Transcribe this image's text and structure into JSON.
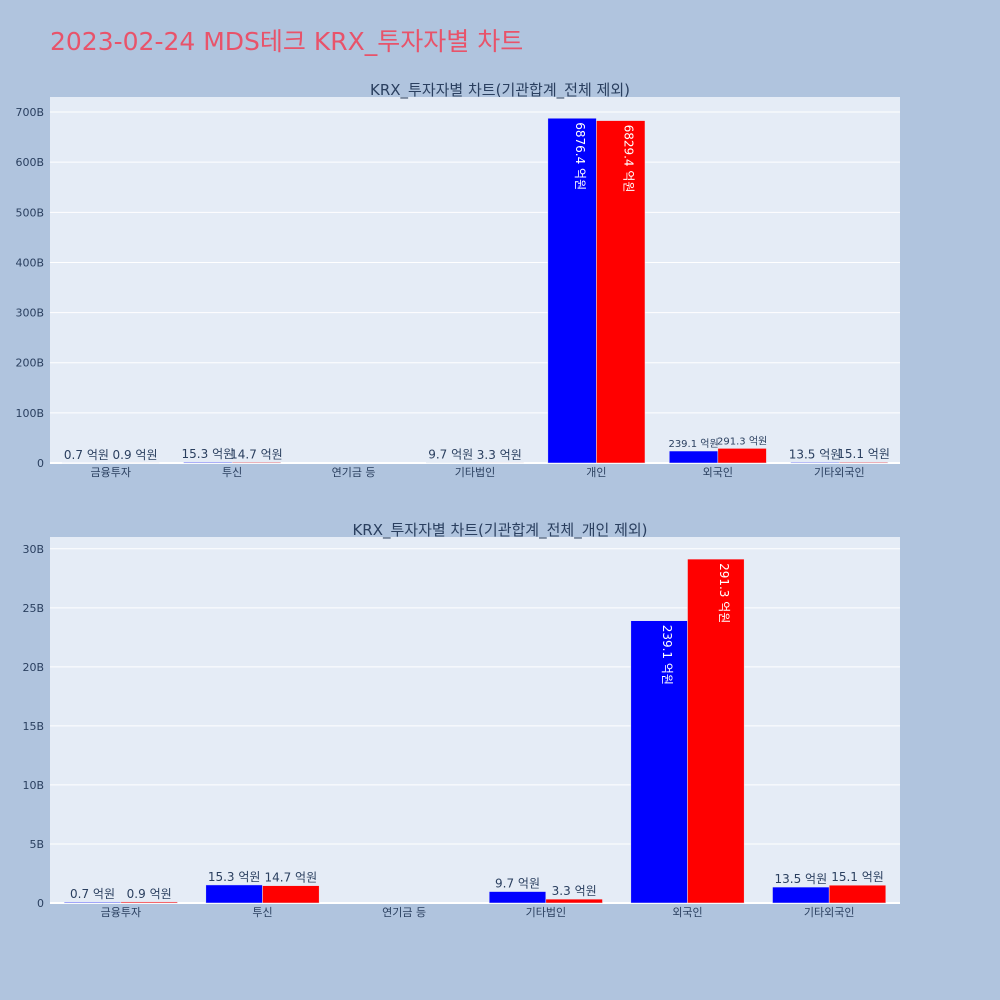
{
  "page": {
    "title": "2023-02-24 MDS테크 KRX_투자자별 차트"
  },
  "colors": {
    "background": "#b0c4de",
    "plot_bg": "#e5ecf6",
    "title": "#e8536a",
    "series_a": "#0000ff",
    "series_b": "#ff0000"
  },
  "chart_data": [
    {
      "type": "bar",
      "title": "KRX_투자자별 차트(기관합계_전체 제외)",
      "categories": [
        "금융투자",
        "투신",
        "연기금 등",
        "기타법인",
        "개인",
        "외국인",
        "기타외국인"
      ],
      "series": [
        {
          "color": "#0000ff",
          "values": [
            0.07,
            1.53,
            0,
            0.97,
            687.64,
            23.91,
            1.35
          ],
          "labels": [
            "0.7 억원",
            "15.3 억원",
            "",
            "9.7 억원",
            "6876.4 억원",
            "239.1 억원",
            "13.5 억원"
          ]
        },
        {
          "color": "#ff0000",
          "values": [
            0.09,
            1.47,
            0,
            0.33,
            682.94,
            29.13,
            1.51
          ],
          "labels": [
            "0.9 억원",
            "14.7 억원",
            "",
            "3.3 억원",
            "6829.4 억원",
            "291.3 억원",
            "15.1 억원"
          ]
        }
      ],
      "ylim": [
        0,
        730
      ],
      "yticks": [
        0,
        100,
        200,
        300,
        400,
        500,
        600,
        700
      ],
      "ytick_labels": [
        "0",
        "100B",
        "200B",
        "300B",
        "400B",
        "500B",
        "600B",
        "700B"
      ],
      "grid": true
    },
    {
      "type": "bar",
      "title": "KRX_투자자별 차트(기관합계_전체_개인 제외)",
      "categories": [
        "금융투자",
        "투신",
        "연기금 등",
        "기타법인",
        "외국인",
        "기타외국인"
      ],
      "series": [
        {
          "color": "#0000ff",
          "values": [
            0.07,
            1.53,
            0,
            0.97,
            23.91,
            1.35
          ],
          "labels": [
            "0.7 억원",
            "15.3 억원",
            "",
            "9.7 억원",
            "239.1 억원",
            "13.5 억원"
          ]
        },
        {
          "color": "#ff0000",
          "values": [
            0.09,
            1.47,
            0,
            0.33,
            29.13,
            1.51
          ],
          "labels": [
            "0.9 억원",
            "14.7 억원",
            "",
            "3.3 억원",
            "291.3 억원",
            "15.1 억원"
          ]
        }
      ],
      "ylim": [
        0,
        31
      ],
      "yticks": [
        0,
        5,
        10,
        15,
        20,
        25,
        30
      ],
      "ytick_labels": [
        "0",
        "5B",
        "10B",
        "15B",
        "20B",
        "25B",
        "30B"
      ],
      "grid": true
    }
  ]
}
